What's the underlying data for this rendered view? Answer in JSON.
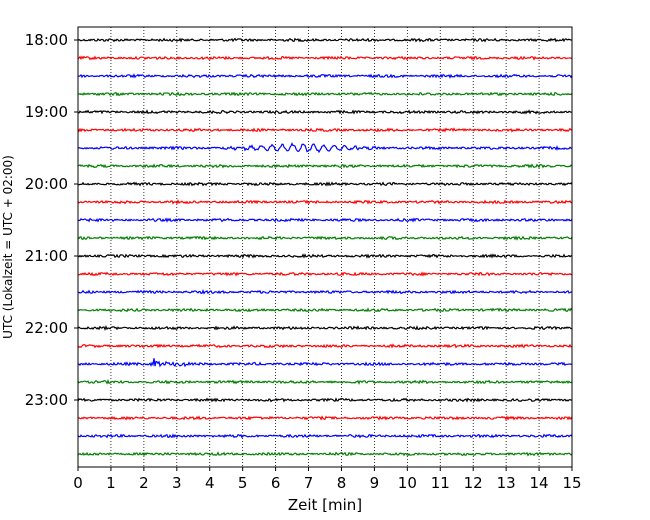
{
  "chart_data": {
    "type": "line",
    "title": "",
    "xlabel": "Zeit  [min]",
    "ylabel": "UTC (Lokalzeit = UTC + 02:00)",
    "xlim": [
      0,
      15
    ],
    "x_ticks": [
      "0",
      "1",
      "2",
      "3",
      "4",
      "5",
      "6",
      "7",
      "8",
      "9",
      "10",
      "11",
      "12",
      "13",
      "14",
      "15"
    ],
    "y_ticks": [
      "18:00",
      "19:00",
      "20:00",
      "21:00",
      "22:00",
      "23:00"
    ],
    "grid": "vertical dotted",
    "trace_interval_minutes": 15,
    "trace_count": 24,
    "trace_start": "18:00",
    "trace_colors": [
      "#000000",
      "#ff0000",
      "#0000ff",
      "#008000"
    ],
    "notable_events": [
      {
        "trace": "19:30",
        "x_range": [
          4.2,
          9.2
        ],
        "description": "oscillation"
      },
      {
        "trace": "22:30",
        "x_range": [
          2.2,
          3.3
        ],
        "description": "spike"
      }
    ]
  }
}
